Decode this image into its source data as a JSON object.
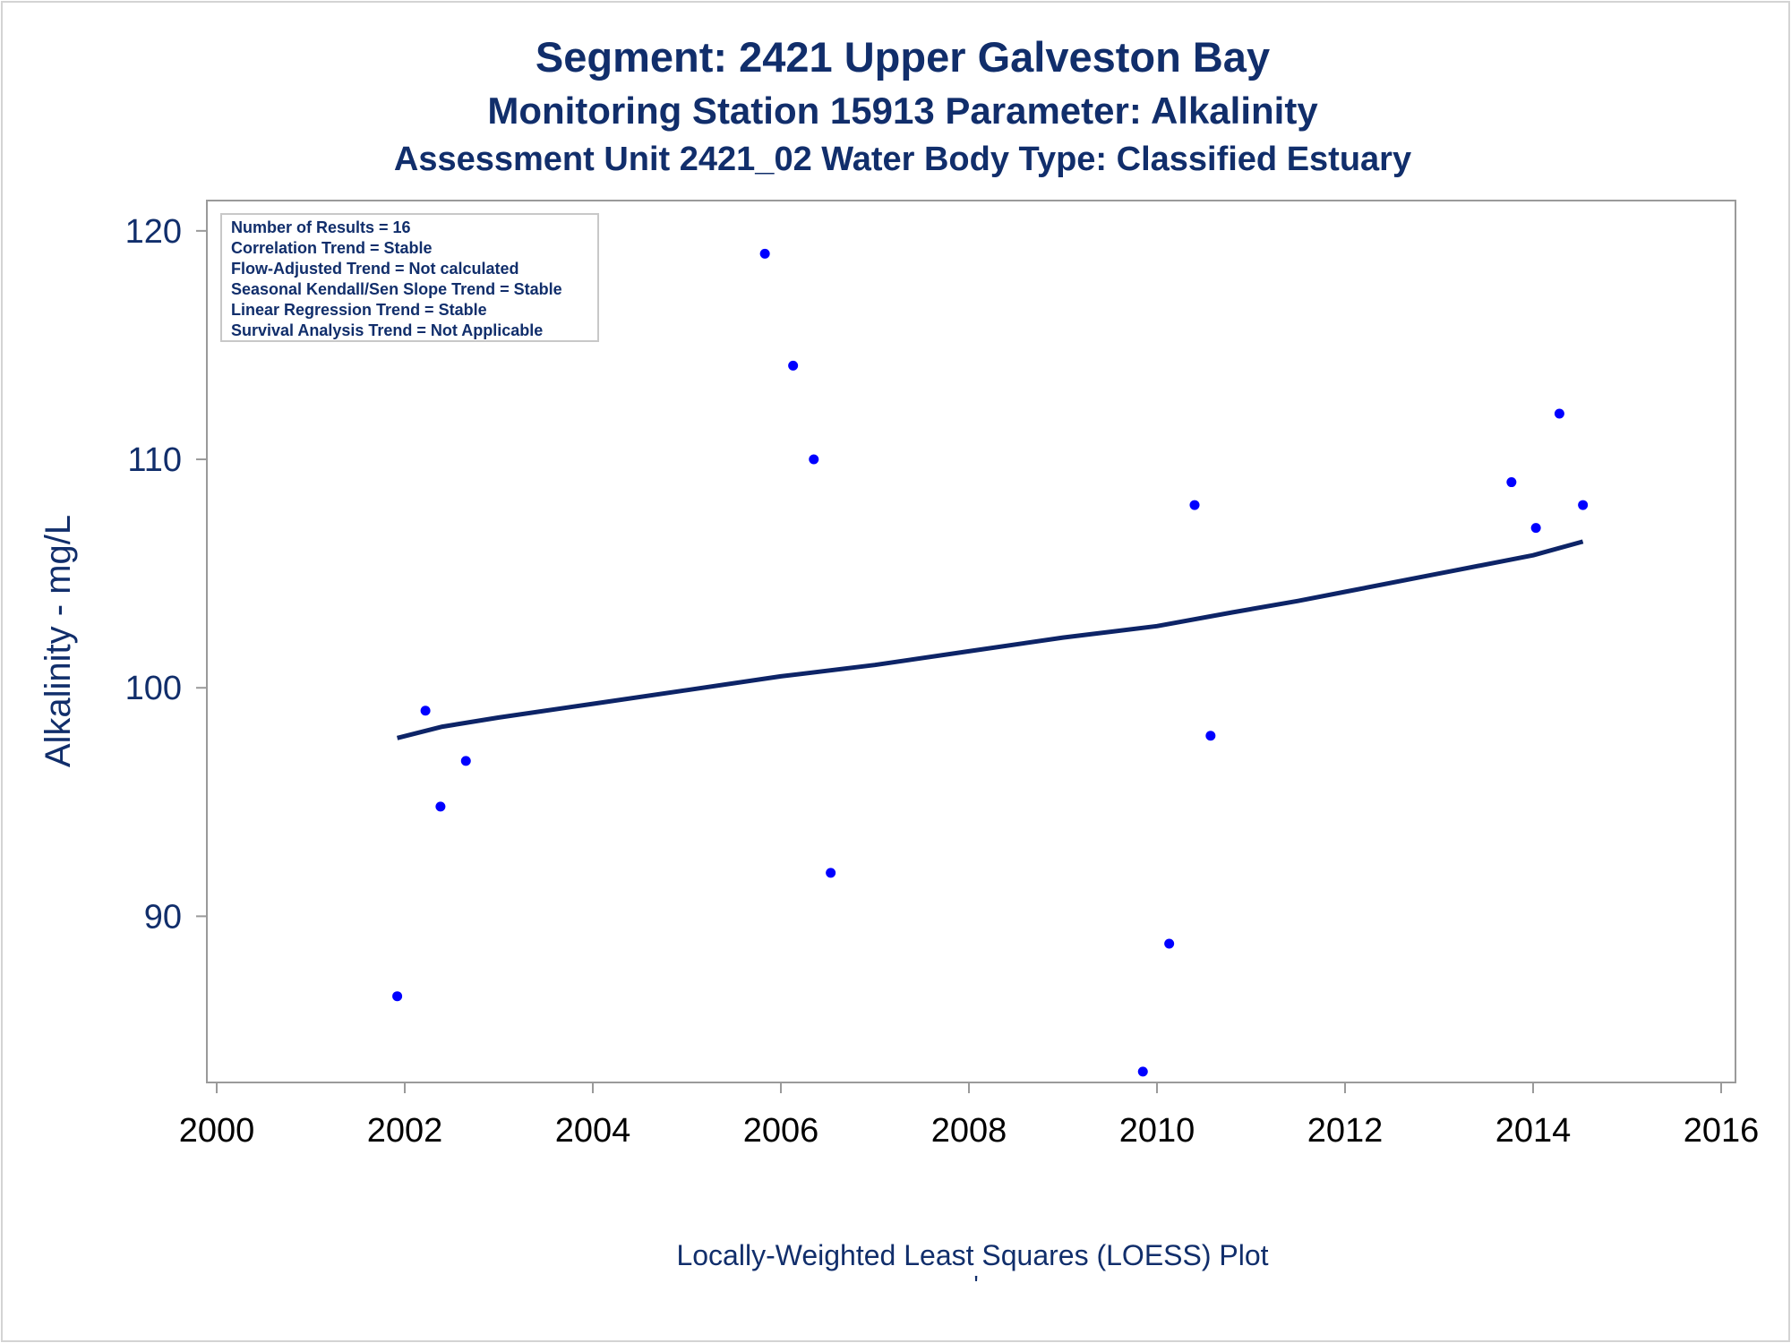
{
  "chart_data": {
    "type": "scatter",
    "title": "Segment: 2421  Upper Galveston Bay",
    "subtitle1": "Monitoring Station 15913 Parameter: Alkalinity",
    "subtitle2": "Assessment Unit 2421_02   Water Body Type: Classified Estuary",
    "xlabel": "",
    "ylabel": "Alkalinity - mg/L",
    "footnote": "Locally-Weighted Least Squares (LOESS) Plot",
    "footnote_mark": "'",
    "xlim": [
      2000,
      2016
    ],
    "ylim": [
      83,
      120.7
    ],
    "x_ticks": [
      "2000",
      "2002",
      "2004",
      "2006",
      "2008",
      "2010",
      "2012",
      "2014",
      "2016"
    ],
    "y_ticks": [
      "90",
      "100",
      "110",
      "120"
    ],
    "grid": false,
    "info_box": [
      "Number of Results = 16",
      "Correlation Trend = Stable",
      "Flow-Adjusted Trend = Not calculated",
      "Seasonal Kendall/Sen Slope Trend = Stable",
      "Linear Regression Trend = Stable",
      "Survival Analysis Trend = Not Applicable"
    ],
    "series": [
      {
        "type": "scatter",
        "x": [
          2001.92,
          2002.22,
          2002.38,
          2002.65,
          2005.83,
          2006.13,
          2006.35,
          2006.53,
          2009.85,
          2010.13,
          2010.4,
          2010.57,
          2013.77,
          2014.03,
          2014.28,
          2014.53
        ],
        "y": [
          86.5,
          99,
          94.8,
          96.8,
          119,
          114.1,
          110,
          91.9,
          83.2,
          88.8,
          108,
          97.9,
          109,
          107,
          112,
          108
        ]
      },
      {
        "type": "line",
        "x": [
          2001.92,
          2002.4,
          2003,
          2004,
          2005,
          2006,
          2007,
          2008,
          2009,
          2010,
          2010.8,
          2011.5,
          2012,
          2013,
          2014,
          2014.53
        ],
        "y": [
          97.8,
          98.3,
          98.7,
          99.3,
          99.9,
          100.5,
          101,
          101.6,
          102.2,
          102.7,
          103.3,
          103.8,
          104.2,
          105.0,
          105.8,
          106.4
        ]
      }
    ],
    "colors": {
      "marker": "#0000ff",
      "line": "#0d2467",
      "text": "#112e6b",
      "axis": "#9a9a9a"
    }
  }
}
